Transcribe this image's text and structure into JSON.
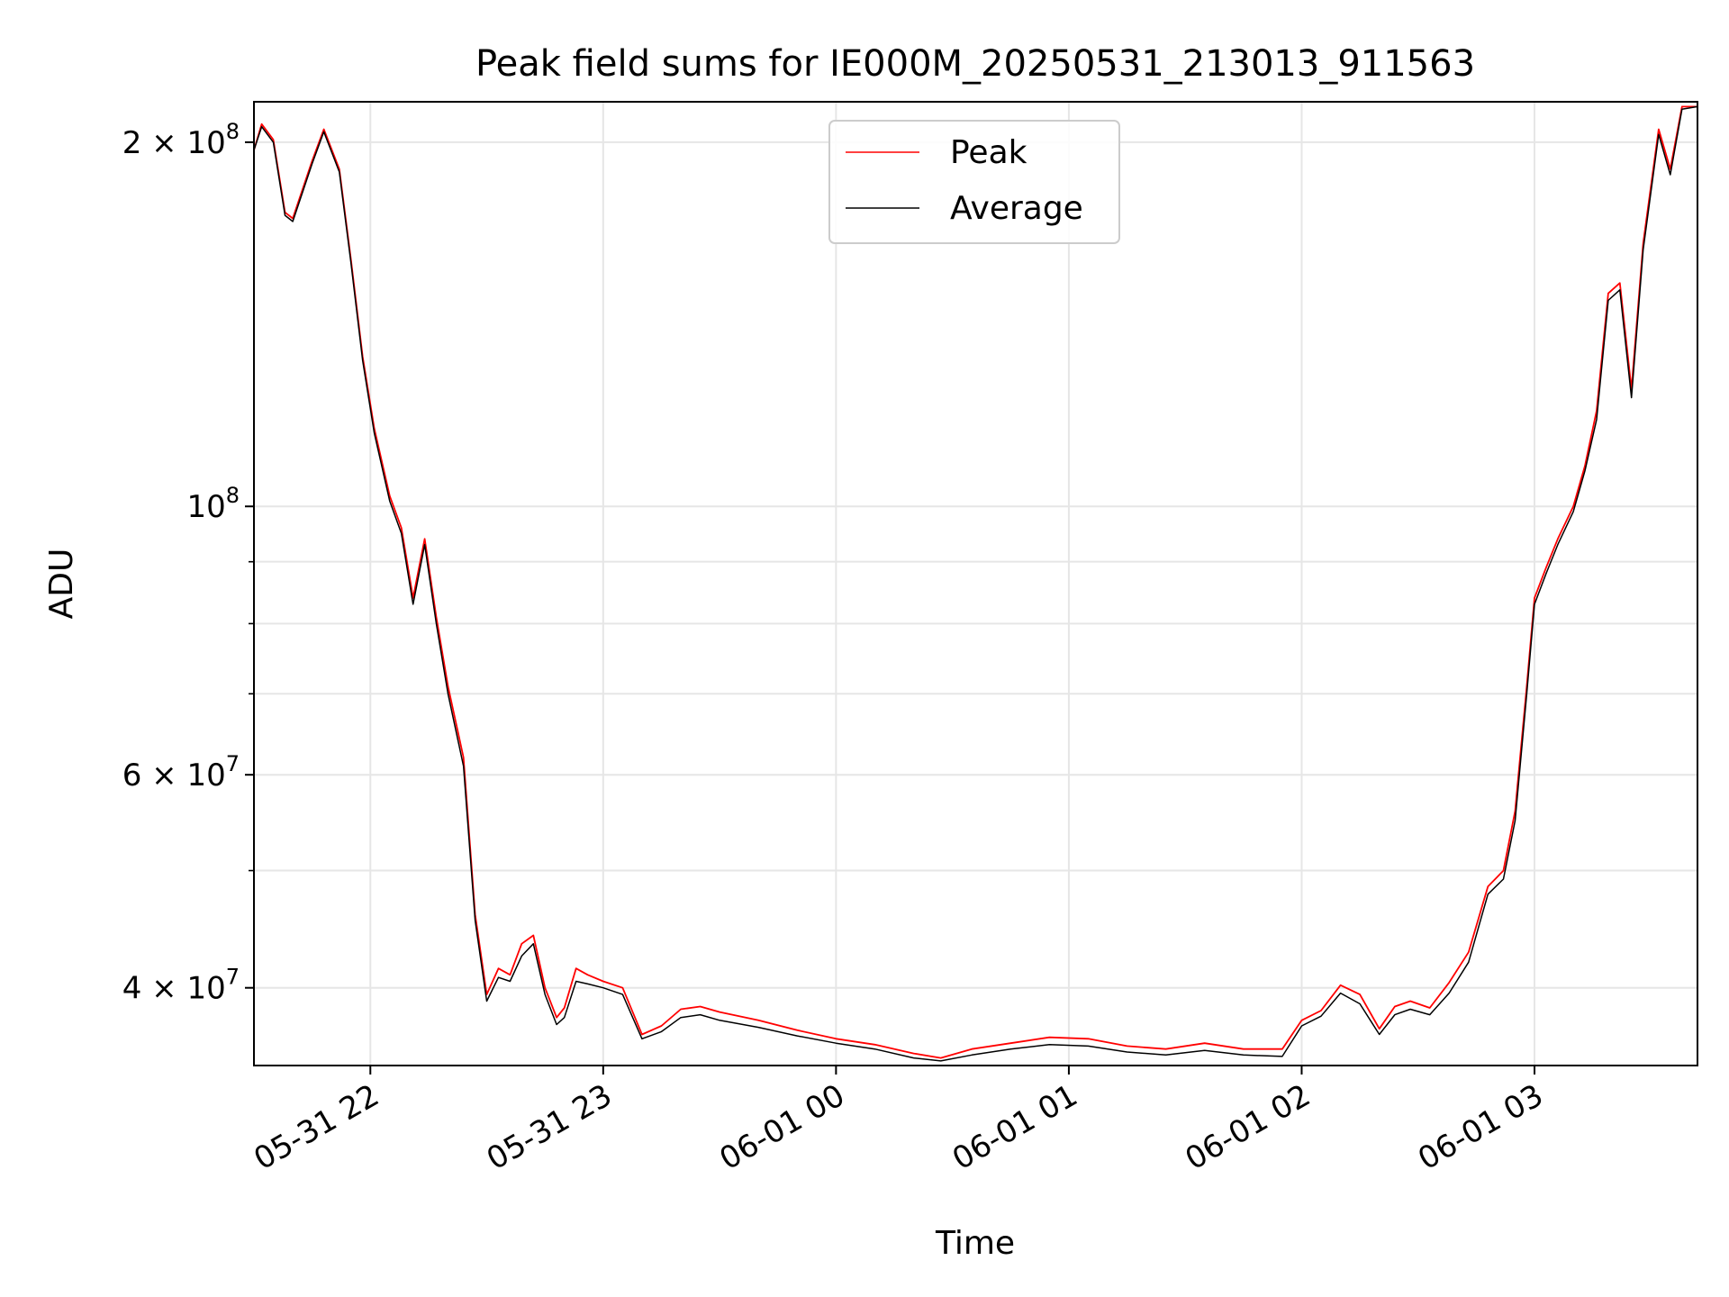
{
  "chart_data": {
    "type": "line",
    "title": "Peak field sums for IE000M_20250531_213013_911563",
    "xlabel": "Time",
    "ylabel": "ADU",
    "yscale": "log",
    "ylim": [
      34500000,
      216000000
    ],
    "xlim": [
      "2025-05-31 21:30",
      "2025-06-01 03:42"
    ],
    "grid": true,
    "legend_position": "top-center",
    "x_ticks": [
      {
        "t": "2025-05-31 22:00",
        "label": "05-31 22"
      },
      {
        "t": "2025-05-31 23:00",
        "label": "05-31 23"
      },
      {
        "t": "2025-06-01 00:00",
        "label": "06-01 00"
      },
      {
        "t": "2025-06-01 01:00",
        "label": "06-01 01"
      },
      {
        "t": "2025-06-01 02:00",
        "label": "06-01 02"
      },
      {
        "t": "2025-06-01 03:00",
        "label": "06-01 03"
      }
    ],
    "y_major_ticks": [
      {
        "value": 40000000,
        "mantissa": "4",
        "exponent": "7"
      },
      {
        "value": 60000000,
        "mantissa": "6",
        "exponent": "7"
      },
      {
        "value": 100000000,
        "mantissa": "",
        "exponent": "8"
      },
      {
        "value": 200000000,
        "mantissa": "2",
        "exponent": "8"
      }
    ],
    "y_minor_ticks": [
      50000000,
      70000000,
      80000000,
      90000000
    ],
    "series": [
      {
        "name": "Peak",
        "color": "#ff0000",
        "x": [
          "2025-05-31 21:30",
          "2025-05-31 21:32",
          "2025-05-31 21:35",
          "2025-05-31 21:38",
          "2025-05-31 21:40",
          "2025-05-31 21:45",
          "2025-05-31 21:48",
          "2025-05-31 21:52",
          "2025-05-31 21:55",
          "2025-05-31 21:58",
          "2025-05-31 22:01",
          "2025-05-31 22:05",
          "2025-05-31 22:08",
          "2025-05-31 22:11",
          "2025-05-31 22:14",
          "2025-05-31 22:17",
          "2025-05-31 22:20",
          "2025-05-31 22:24",
          "2025-05-31 22:27",
          "2025-05-31 22:30",
          "2025-05-31 22:33",
          "2025-05-31 22:36",
          "2025-05-31 22:39",
          "2025-05-31 22:42",
          "2025-05-31 22:45",
          "2025-05-31 22:48",
          "2025-05-31 22:50",
          "2025-05-31 22:53",
          "2025-05-31 22:56",
          "2025-05-31 23:00",
          "2025-05-31 23:05",
          "2025-05-31 23:10",
          "2025-05-31 23:15",
          "2025-05-31 23:20",
          "2025-05-31 23:25",
          "2025-05-31 23:30",
          "2025-05-31 23:40",
          "2025-05-31 23:50",
          "2025-06-01 00:00",
          "2025-06-01 00:10",
          "2025-06-01 00:20",
          "2025-06-01 00:27",
          "2025-06-01 00:35",
          "2025-06-01 00:45",
          "2025-06-01 00:55",
          "2025-06-01 01:05",
          "2025-06-01 01:15",
          "2025-06-01 01:25",
          "2025-06-01 01:35",
          "2025-06-01 01:45",
          "2025-06-01 01:55",
          "2025-06-01 02:00",
          "2025-06-01 02:05",
          "2025-06-01 02:10",
          "2025-06-01 02:15",
          "2025-06-01 02:20",
          "2025-06-01 02:24",
          "2025-06-01 02:28",
          "2025-06-01 02:33",
          "2025-06-01 02:38",
          "2025-06-01 02:43",
          "2025-06-01 02:48",
          "2025-06-01 02:52",
          "2025-06-01 02:55",
          "2025-06-01 02:58",
          "2025-06-01 03:00",
          "2025-06-01 03:03",
          "2025-06-01 03:06",
          "2025-06-01 03:10",
          "2025-06-01 03:13",
          "2025-06-01 03:16",
          "2025-06-01 03:19",
          "2025-06-01 03:22",
          "2025-06-01 03:25",
          "2025-06-01 03:28",
          "2025-06-01 03:32",
          "2025-06-01 03:35",
          "2025-06-01 03:38",
          "2025-06-01 03:42"
        ],
        "values": [
          197000000,
          207000000,
          201000000,
          175000000,
          173000000,
          193000000,
          205000000,
          190000000,
          160000000,
          133000000,
          116000000,
          102000000,
          96000000,
          84000000,
          94000000,
          81000000,
          71000000,
          62000000,
          46000000,
          39500000,
          41500000,
          41000000,
          43500000,
          44200000,
          40000000,
          37800000,
          38500000,
          41500000,
          41000000,
          40500000,
          40000000,
          36600000,
          37200000,
          38400000,
          38600000,
          38200000,
          37600000,
          36900000,
          36300000,
          35900000,
          35300000,
          35000000,
          35600000,
          36000000,
          36400000,
          36300000,
          35800000,
          35600000,
          36000000,
          35600000,
          35600000,
          37600000,
          38300000,
          40200000,
          39500000,
          37000000,
          38600000,
          39000000,
          38500000,
          40400000,
          42800000,
          48500000,
          50000000,
          56000000,
          71000000,
          84000000,
          89000000,
          94000000,
          100000000,
          108000000,
          120000000,
          150000000,
          153000000,
          125000000,
          165000000,
          205000000,
          190000000,
          214000000,
          214000000
        ]
      },
      {
        "name": "Average",
        "color": "#000000",
        "x": [
          "2025-05-31 21:30",
          "2025-05-31 21:32",
          "2025-05-31 21:35",
          "2025-05-31 21:38",
          "2025-05-31 21:40",
          "2025-05-31 21:45",
          "2025-05-31 21:48",
          "2025-05-31 21:52",
          "2025-05-31 21:55",
          "2025-05-31 21:58",
          "2025-05-31 22:01",
          "2025-05-31 22:05",
          "2025-05-31 22:08",
          "2025-05-31 22:11",
          "2025-05-31 22:14",
          "2025-05-31 22:17",
          "2025-05-31 22:20",
          "2025-05-31 22:24",
          "2025-05-31 22:27",
          "2025-05-31 22:30",
          "2025-05-31 22:33",
          "2025-05-31 22:36",
          "2025-05-31 22:39",
          "2025-05-31 22:42",
          "2025-05-31 22:45",
          "2025-05-31 22:48",
          "2025-05-31 22:50",
          "2025-05-31 22:53",
          "2025-05-31 22:56",
          "2025-05-31 23:00",
          "2025-05-31 23:05",
          "2025-05-31 23:10",
          "2025-05-31 23:15",
          "2025-05-31 23:20",
          "2025-05-31 23:25",
          "2025-05-31 23:30",
          "2025-05-31 23:40",
          "2025-05-31 23:50",
          "2025-06-01 00:00",
          "2025-06-01 00:10",
          "2025-06-01 00:20",
          "2025-06-01 00:27",
          "2025-06-01 00:35",
          "2025-06-01 00:45",
          "2025-06-01 00:55",
          "2025-06-01 01:05",
          "2025-06-01 01:15",
          "2025-06-01 01:25",
          "2025-06-01 01:35",
          "2025-06-01 01:45",
          "2025-06-01 01:55",
          "2025-06-01 02:00",
          "2025-06-01 02:05",
          "2025-06-01 02:10",
          "2025-06-01 02:15",
          "2025-06-01 02:20",
          "2025-06-01 02:24",
          "2025-06-01 02:28",
          "2025-06-01 02:33",
          "2025-06-01 02:38",
          "2025-06-01 02:43",
          "2025-06-01 02:48",
          "2025-06-01 02:52",
          "2025-06-01 02:55",
          "2025-06-01 02:58",
          "2025-06-01 03:00",
          "2025-06-01 03:03",
          "2025-06-01 03:06",
          "2025-06-01 03:10",
          "2025-06-01 03:13",
          "2025-06-01 03:16",
          "2025-06-01 03:19",
          "2025-06-01 03:22",
          "2025-06-01 03:25",
          "2025-06-01 03:28",
          "2025-06-01 03:32",
          "2025-06-01 03:35",
          "2025-06-01 03:38",
          "2025-06-01 03:42"
        ],
        "values": [
          197000000,
          206000000,
          200000000,
          174000000,
          172000000,
          192000000,
          204000000,
          189000000,
          159000000,
          132000000,
          115000000,
          101000000,
          95000000,
          83000000,
          93000000,
          80000000,
          70000000,
          61000000,
          45500000,
          39000000,
          40800000,
          40500000,
          42500000,
          43500000,
          39500000,
          37300000,
          37800000,
          40500000,
          40300000,
          40000000,
          39500000,
          36300000,
          36800000,
          37800000,
          38000000,
          37600000,
          37100000,
          36500000,
          36000000,
          35600000,
          35000000,
          34800000,
          35200000,
          35600000,
          35900000,
          35800000,
          35400000,
          35200000,
          35500000,
          35200000,
          35100000,
          37200000,
          37900000,
          39600000,
          38800000,
          36600000,
          38000000,
          38400000,
          38000000,
          39600000,
          42000000,
          47800000,
          49200000,
          55000000,
          70000000,
          83000000,
          88000000,
          93000000,
          99000000,
          107000000,
          118000000,
          148000000,
          151000000,
          123000000,
          163000000,
          203000000,
          188000000,
          213000000,
          214000000
        ]
      }
    ]
  }
}
